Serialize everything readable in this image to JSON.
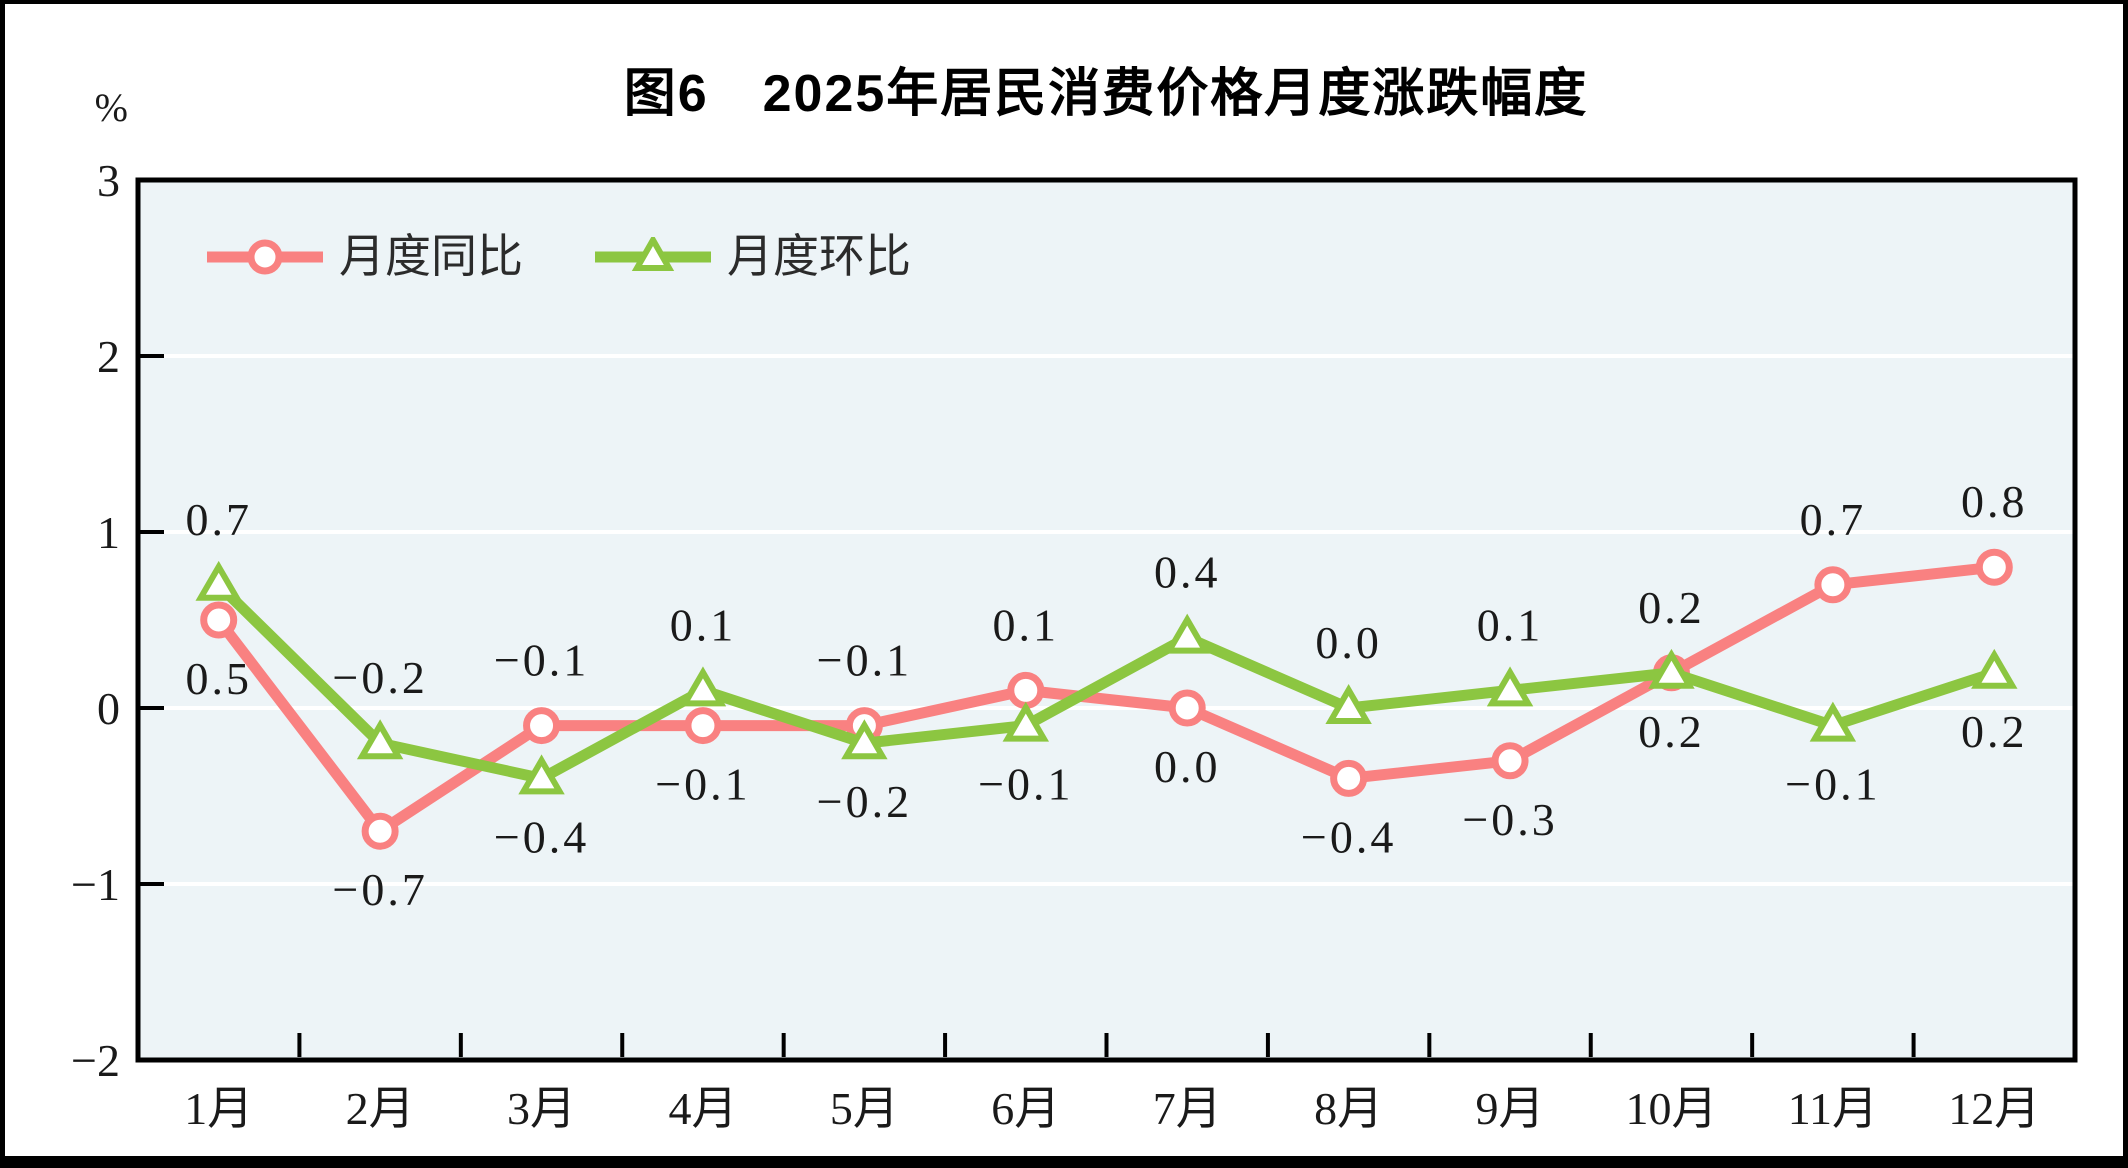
{
  "chart_data": {
    "type": "line",
    "title": "图6　2025年居民消费价格月度涨跌幅度",
    "ylabel": "%",
    "unit_label": "%",
    "categories": [
      "1月",
      "2月",
      "3月",
      "4月",
      "5月",
      "6月",
      "7月",
      "8月",
      "9月",
      "10月",
      "11月",
      "12月"
    ],
    "series": [
      {
        "name": "月度同比",
        "color": "#f98181",
        "marker": "circle",
        "values": [
          0.5,
          -0.7,
          -0.1,
          -0.1,
          -0.1,
          0.1,
          0.0,
          -0.4,
          -0.3,
          0.2,
          0.7,
          0.8
        ],
        "labels": [
          "0.5",
          "−0.7",
          "−0.1",
          "−0.1",
          "−0.1",
          "0.1",
          "0.0",
          "−0.4",
          "−0.3",
          "0.2",
          "0.7",
          "0.8"
        ],
        "label_positions": [
          "below",
          "below",
          "above",
          "below",
          "above",
          "above",
          "below",
          "below",
          "below",
          "above",
          "above",
          "above"
        ]
      },
      {
        "name": "月度环比",
        "color": "#8cc641",
        "marker": "triangle",
        "values": [
          0.7,
          -0.2,
          -0.4,
          0.1,
          -0.2,
          -0.1,
          0.4,
          0.0,
          0.1,
          0.2,
          -0.1,
          0.2
        ],
        "labels": [
          "0.7",
          "−0.2",
          "−0.4",
          "0.1",
          "−0.2",
          "−0.1",
          "0.4",
          "0.0",
          "0.1",
          "0.2",
          "−0.1",
          "0.2"
        ],
        "label_positions": [
          "above",
          "above",
          "below",
          "above",
          "below",
          "below",
          "above",
          "above",
          "above",
          "below",
          "below",
          "below"
        ]
      }
    ],
    "ylim": [
      -2,
      3
    ],
    "yticks": [
      3,
      2,
      1,
      0,
      -1,
      -2
    ],
    "ytick_labels": [
      "3",
      "2",
      "1",
      "0",
      "−1",
      "−2"
    ],
    "grid": true,
    "gridline_color": "#ffffff",
    "plot_background": "#edf4f7",
    "axis_color": "#000000",
    "text_color": "#1a1a1a",
    "legend_position": "top-left-inside"
  }
}
